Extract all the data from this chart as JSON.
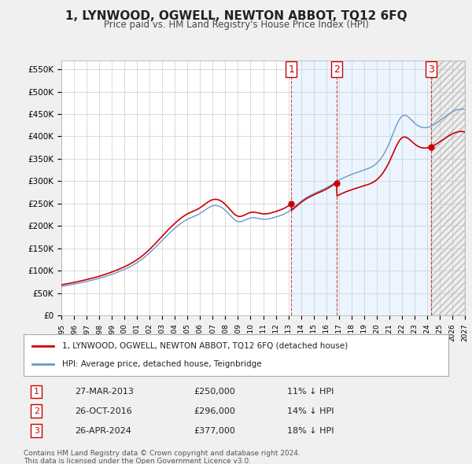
{
  "title": "1, LYNWOOD, OGWELL, NEWTON ABBOT, TQ12 6FQ",
  "subtitle": "Price paid vs. HM Land Registry's House Price Index (HPI)",
  "ylabel_ticks": [
    "£0",
    "£50K",
    "£100K",
    "£150K",
    "£200K",
    "£250K",
    "£300K",
    "£350K",
    "£400K",
    "£450K",
    "£500K",
    "£550K"
  ],
  "ytick_values": [
    0,
    50000,
    100000,
    150000,
    200000,
    250000,
    300000,
    350000,
    400000,
    450000,
    500000,
    550000
  ],
  "ylim": [
    0,
    570000
  ],
  "xlim_start": 1995.0,
  "xlim_end": 2027.0,
  "sale_color": "#cc0000",
  "hpi_color": "#6699cc",
  "sale_label": "1, LYNWOOD, OGWELL, NEWTON ABBOT, TQ12 6FQ (detached house)",
  "hpi_label": "HPI: Average price, detached house, Teignbridge",
  "purchases": [
    {
      "date_num": 2013.23,
      "price": 250000,
      "label": "1",
      "date_str": "27-MAR-2013",
      "pct": "11% ↓ HPI"
    },
    {
      "date_num": 2016.82,
      "price": 296000,
      "label": "2",
      "date_str": "26-OCT-2016",
      "pct": "14% ↓ HPI"
    },
    {
      "date_num": 2024.32,
      "price": 377000,
      "label": "3",
      "date_str": "26-APR-2024",
      "pct": "18% ↓ HPI"
    }
  ],
  "footnote1": "Contains HM Land Registry data © Crown copyright and database right 2024.",
  "footnote2": "This data is licensed under the Open Government Licence v3.0.",
  "background_color": "#f0f0f0",
  "plot_bg_color": "#ffffff",
  "grid_color": "#cccccc"
}
